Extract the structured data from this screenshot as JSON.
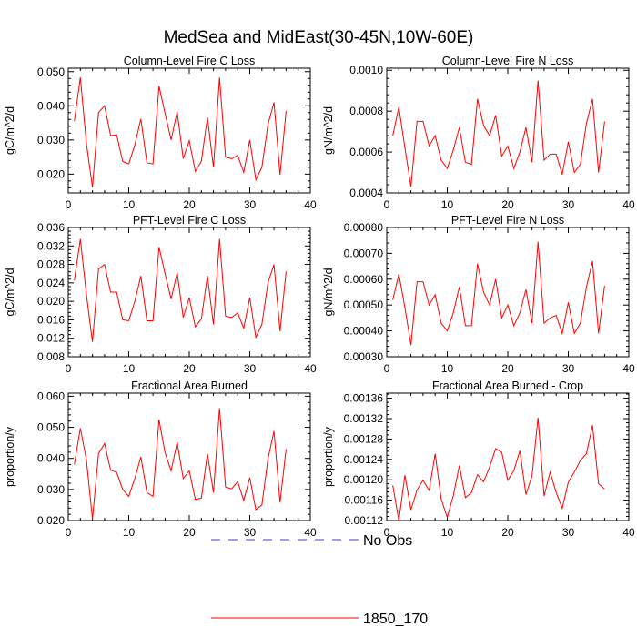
{
  "figure": {
    "title": "MedSea and MidEast(30-45N,10W-60E)",
    "line_color": "#ff0000",
    "obs_color": "#3b3bd6",
    "legend": [
      {
        "label": "No Obs",
        "style": "dashed",
        "color": "#3b3bd6"
      },
      {
        "label": "1850_170",
        "style": "solid",
        "color": "#ff0000"
      }
    ]
  },
  "chart_data": [
    {
      "type": "line",
      "title": "Column-Level Fire C Loss",
      "ylabel": "gC/m^2/d",
      "xlabel": "",
      "xlim": [
        0,
        40
      ],
      "ylim": [
        0.0145,
        0.051
      ],
      "xticks": [
        0,
        10,
        20,
        30,
        40
      ],
      "xtick_labels": [
        "0",
        "10",
        "20",
        "30",
        "40"
      ],
      "yticks": [
        0.02,
        0.03,
        0.04,
        0.05
      ],
      "ytick_labels": [
        "0.020",
        "0.030",
        "0.040",
        "0.050"
      ],
      "series": [
        {
          "name": "1850_170",
          "x": [
            1,
            2,
            3,
            4,
            5,
            6,
            7,
            8,
            9,
            10,
            11,
            12,
            13,
            14,
            15,
            16,
            17,
            18,
            19,
            20,
            21,
            22,
            23,
            24,
            25,
            26,
            27,
            28,
            29,
            30,
            31,
            32,
            33,
            34,
            35,
            36
          ],
          "values": [
            0.0355,
            0.0483,
            0.029,
            0.0161,
            0.038,
            0.04,
            0.0313,
            0.0315,
            0.0237,
            0.023,
            0.0285,
            0.0362,
            0.0233,
            0.023,
            0.0458,
            0.0378,
            0.03,
            0.0383,
            0.0245,
            0.0298,
            0.0208,
            0.0238,
            0.0366,
            0.022,
            0.0483,
            0.025,
            0.0245,
            0.0255,
            0.0205,
            0.03,
            0.0183,
            0.022,
            0.0345,
            0.041,
            0.0198,
            0.0385
          ]
        }
      ]
    },
    {
      "type": "line",
      "title": "Column-Level Fire N Loss",
      "ylabel": "gN/m^2/d",
      "xlabel": "",
      "xlim": [
        0,
        40
      ],
      "ylim": [
        0.0004,
        0.00101
      ],
      "xticks": [
        0,
        10,
        20,
        30,
        40
      ],
      "xtick_labels": [
        "0",
        "10",
        "20",
        "30",
        "40"
      ],
      "yticks": [
        0.0004,
        0.0006,
        0.0008,
        0.001
      ],
      "ytick_labels": [
        "0.0004",
        "0.0006",
        "0.0008",
        "0.0010"
      ],
      "series": [
        {
          "name": "1850_170",
          "x": [
            1,
            2,
            3,
            4,
            5,
            6,
            7,
            8,
            9,
            10,
            11,
            12,
            13,
            14,
            15,
            16,
            17,
            18,
            19,
            20,
            21,
            22,
            23,
            24,
            25,
            26,
            27,
            28,
            29,
            30,
            31,
            32,
            33,
            34,
            35,
            36
          ],
          "values": [
            0.00068,
            0.00082,
            0.00062,
            0.00043,
            0.00075,
            0.00075,
            0.00063,
            0.00068,
            0.00056,
            0.00052,
            0.00061,
            0.00072,
            0.00055,
            0.00054,
            0.00086,
            0.00073,
            0.00068,
            0.00078,
            0.00058,
            0.00063,
            0.00052,
            0.0006,
            0.00072,
            0.00055,
            0.00095,
            0.00056,
            0.00059,
            0.00059,
            0.00049,
            0.00065,
            0.0005,
            0.00054,
            0.00074,
            0.00086,
            0.0005,
            0.00075
          ]
        }
      ]
    },
    {
      "type": "line",
      "title": "PFT-Level Fire C Loss",
      "ylabel": "gC/m^2/d",
      "xlabel": "",
      "xlim": [
        0,
        40
      ],
      "ylim": [
        0.008,
        0.036
      ],
      "xticks": [
        0,
        10,
        20,
        30,
        40
      ],
      "xtick_labels": [
        "0",
        "10",
        "20",
        "30",
        "40"
      ],
      "yticks": [
        0.008,
        0.012,
        0.016,
        0.02,
        0.024,
        0.028,
        0.032,
        0.036
      ],
      "ytick_labels": [
        "0.008",
        "0.012",
        "0.016",
        "0.020",
        "0.024",
        "0.028",
        "0.032",
        "0.036"
      ],
      "series": [
        {
          "name": "1850_170",
          "x": [
            1,
            2,
            3,
            4,
            5,
            6,
            7,
            8,
            9,
            10,
            11,
            12,
            13,
            14,
            15,
            16,
            17,
            18,
            19,
            20,
            21,
            22,
            23,
            24,
            25,
            26,
            27,
            28,
            29,
            30,
            31,
            32,
            33,
            34,
            35,
            36
          ],
          "values": [
            0.0245,
            0.0335,
            0.0215,
            0.0112,
            0.027,
            0.028,
            0.022,
            0.022,
            0.016,
            0.0158,
            0.02,
            0.0255,
            0.0158,
            0.0158,
            0.0318,
            0.026,
            0.0205,
            0.0262,
            0.0165,
            0.0208,
            0.0145,
            0.0162,
            0.0255,
            0.015,
            0.0335,
            0.0168,
            0.0165,
            0.0175,
            0.0142,
            0.0208,
            0.0122,
            0.015,
            0.024,
            0.028,
            0.0135,
            0.0265
          ]
        }
      ]
    },
    {
      "type": "line",
      "title": "PFT-Level Fire N Loss",
      "ylabel": "gN/m^2/d",
      "xlabel": "",
      "xlim": [
        0,
        40
      ],
      "ylim": [
        0.0003,
        0.0008
      ],
      "xticks": [
        0,
        10,
        20,
        30,
        40
      ],
      "xtick_labels": [
        "0",
        "10",
        "20",
        "30",
        "40"
      ],
      "yticks": [
        0.0003,
        0.0004,
        0.0005,
        0.0006,
        0.0007,
        0.0008
      ],
      "ytick_labels": [
        "0.00030",
        "0.00040",
        "0.00050",
        "0.00060",
        "0.00070",
        "0.00080"
      ],
      "series": [
        {
          "name": "1850_170",
          "x": [
            1,
            2,
            3,
            4,
            5,
            6,
            7,
            8,
            9,
            10,
            11,
            12,
            13,
            14,
            15,
            16,
            17,
            18,
            19,
            20,
            21,
            22,
            23,
            24,
            25,
            26,
            27,
            28,
            29,
            30,
            31,
            32,
            33,
            34,
            35,
            36
          ],
          "values": [
            0.00052,
            0.00062,
            0.00049,
            0.000345,
            0.00059,
            0.00059,
            0.0005,
            0.00054,
            0.00043,
            0.0004,
            0.00047,
            0.00057,
            0.00042,
            0.00042,
            0.00066,
            0.00055,
            0.0005,
            0.0006,
            0.00045,
            0.0005,
            0.00042,
            0.00047,
            0.00056,
            0.00043,
            0.000745,
            0.00043,
            0.00045,
            0.00046,
            0.00039,
            0.00051,
            0.00039,
            0.00043,
            0.00057,
            0.00067,
            0.00039,
            0.000575
          ]
        }
      ]
    },
    {
      "type": "line",
      "title": "Fractional Area Burned",
      "ylabel": "proportion/y",
      "xlabel": "",
      "xlim": [
        0,
        40
      ],
      "ylim": [
        0.02,
        0.061
      ],
      "xticks": [
        0,
        10,
        20,
        30,
        40
      ],
      "xtick_labels": [
        "0",
        "10",
        "20",
        "30",
        "40"
      ],
      "yticks": [
        0.02,
        0.03,
        0.04,
        0.05,
        0.06
      ],
      "ytick_labels": [
        "0.020",
        "0.030",
        "0.040",
        "0.050",
        "0.060"
      ],
      "series": [
        {
          "name": "1850_170",
          "x": [
            1,
            2,
            3,
            4,
            5,
            6,
            7,
            8,
            9,
            10,
            11,
            12,
            13,
            14,
            15,
            16,
            17,
            18,
            19,
            20,
            21,
            22,
            23,
            24,
            25,
            26,
            27,
            28,
            29,
            30,
            31,
            32,
            33,
            34,
            35,
            36
          ],
          "values": [
            0.038,
            0.0497,
            0.0395,
            0.0205,
            0.0415,
            0.0448,
            0.0362,
            0.0355,
            0.03,
            0.0278,
            0.0335,
            0.0405,
            0.029,
            0.0278,
            0.0525,
            0.0418,
            0.036,
            0.0452,
            0.0335,
            0.036,
            0.0268,
            0.0272,
            0.0415,
            0.029,
            0.0562,
            0.0308,
            0.0302,
            0.0325,
            0.0265,
            0.0338,
            0.0235,
            0.025,
            0.0398,
            0.0488,
            0.0258,
            0.043
          ]
        }
      ]
    },
    {
      "type": "line",
      "title": "Fractional Area Burned - Crop",
      "ylabel": "proportion/y",
      "xlabel": "",
      "xlim": [
        0,
        40
      ],
      "ylim": [
        0.00112,
        0.00137
      ],
      "xticks": [
        0,
        10,
        20,
        30,
        40
      ],
      "xtick_labels": [
        "0",
        "10",
        "20",
        "30",
        "40"
      ],
      "yticks": [
        0.00112,
        0.00116,
        0.0012,
        0.00124,
        0.00128,
        0.00132,
        0.00136
      ],
      "ytick_labels": [
        "0.00112",
        "0.00116",
        "0.00120",
        "0.00124",
        "0.00128",
        "0.00132",
        "0.00136"
      ],
      "series": [
        {
          "name": "1850_170",
          "x": [
            1,
            2,
            3,
            4,
            5,
            6,
            7,
            8,
            9,
            10,
            11,
            12,
            13,
            14,
            15,
            16,
            17,
            18,
            19,
            20,
            21,
            22,
            23,
            24,
            25,
            26,
            27,
            28,
            29,
            30,
            31,
            32,
            33,
            34,
            35,
            36
          ],
          "values": [
            0.001189,
            0.00112,
            0.001209,
            0.001141,
            0.00118,
            0.001199,
            0.001179,
            0.001251,
            0.001162,
            0.001126,
            0.001169,
            0.001228,
            0.001165,
            0.001175,
            0.00121,
            0.001196,
            0.001225,
            0.001261,
            0.001254,
            0.001199,
            0.001218,
            0.001257,
            0.001171,
            0.001207,
            0.001322,
            0.001168,
            0.001215,
            0.001175,
            0.001144,
            0.001195,
            0.001215,
            0.001238,
            0.001251,
            0.001307,
            0.001192,
            0.001182
          ]
        }
      ]
    }
  ]
}
